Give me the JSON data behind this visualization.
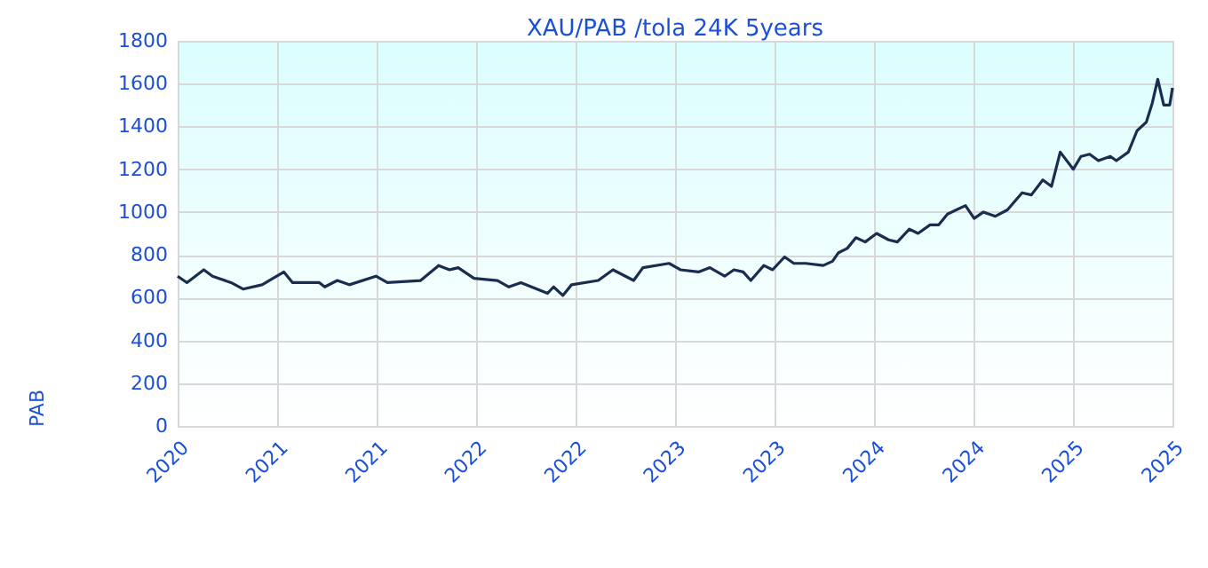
{
  "chart_data": {
    "type": "line",
    "title": "XAU/PAB /tola 24K 5years",
    "ylabel": "PAB",
    "x": [
      "2020-10-28",
      "2020-11-14",
      "2020-12-15",
      "2020-12-31",
      "2021-02-03",
      "2021-02-25",
      "2021-04-01",
      "2021-05-11",
      "2021-05-27",
      "2021-07-15",
      "2021-07-25",
      "2021-08-17",
      "2021-09-08",
      "2021-10-27",
      "2021-11-17",
      "2022-01-17",
      "2022-02-19",
      "2022-03-11",
      "2022-03-27",
      "2022-04-25",
      "2022-06-07",
      "2022-06-28",
      "2022-07-20",
      "2022-09-07",
      "2022-09-18",
      "2022-10-05",
      "2022-10-21",
      "2022-12-09",
      "2023-01-05",
      "2023-02-12",
      "2023-03-01",
      "2023-04-18",
      "2023-05-09",
      "2023-06-11",
      "2023-07-02",
      "2023-07-29",
      "2023-08-15",
      "2023-09-01",
      "2023-09-15",
      "2023-10-09",
      "2023-10-25",
      "2023-11-16",
      "2023-12-03",
      "2023-12-25",
      "2024-01-26",
      "2024-02-12",
      "2024-02-23",
      "2024-03-10",
      "2024-03-26",
      "2024-04-12",
      "2024-05-03",
      "2024-05-25",
      "2024-06-10",
      "2024-07-02",
      "2024-07-18",
      "2024-08-09",
      "2024-08-25",
      "2024-09-10",
      "2024-10-13",
      "2024-10-29",
      "2024-11-15",
      "2024-12-07",
      "2024-12-29",
      "2025-01-25",
      "2025-02-11",
      "2025-03-04",
      "2025-03-20",
      "2025-04-05",
      "2025-04-29",
      "2025-05-13",
      "2025-05-29",
      "2025-06-14",
      "2025-07-06",
      "2025-07-17",
      "2025-08-08",
      "2025-08-24",
      "2025-09-10",
      "2025-09-21",
      "2025-10-01",
      "2025-10-12",
      "2025-10-23",
      "2025-10-28"
    ],
    "series": [
      {
        "color": "#1b2d4f",
        "values": [
          700,
          670,
          730,
          700,
          670,
          640,
          660,
          720,
          670,
          670,
          650,
          680,
          660,
          700,
          670,
          680,
          750,
          730,
          740,
          690,
          680,
          650,
          670,
          620,
          650,
          610,
          660,
          680,
          730,
          680,
          740,
          760,
          730,
          720,
          740,
          700,
          730,
          720,
          680,
          750,
          730,
          790,
          760,
          760,
          750,
          770,
          810,
          830,
          880,
          860,
          900,
          870,
          860,
          920,
          900,
          940,
          940,
          990,
          1030,
          970,
          1000,
          980,
          1010,
          1090,
          1080,
          1150,
          1120,
          1280,
          1200,
          1260,
          1270,
          1240,
          1260,
          1240,
          1280,
          1380,
          1420,
          1510,
          1620,
          1500,
          1500,
          1580
        ]
      }
    ],
    "xlim": [
      "2020-10-28",
      "2025-10-28"
    ],
    "xticks": [
      {
        "value": "2020-10-28",
        "label": "2020"
      },
      {
        "value": "2021-04-28",
        "label": "2021"
      },
      {
        "value": "2021-10-28",
        "label": "2021"
      },
      {
        "value": "2022-04-28",
        "label": "2022"
      },
      {
        "value": "2022-10-28",
        "label": "2022"
      },
      {
        "value": "2023-04-28",
        "label": "2023"
      },
      {
        "value": "2023-10-28",
        "label": "2023"
      },
      {
        "value": "2024-04-28",
        "label": "2024"
      },
      {
        "value": "2024-10-28",
        "label": "2024"
      },
      {
        "value": "2025-04-28",
        "label": "2025"
      },
      {
        "value": "2025-10-28",
        "label": "2025"
      }
    ],
    "ylim": [
      0,
      1800
    ],
    "yticks": [
      0,
      200,
      400,
      600,
      800,
      {
        "value": 1000,
        "label": "1000"
      },
      {
        "value": 1200,
        "label": "1200"
      },
      {
        "value": 1400,
        "label": "1400"
      },
      {
        "value": 1600,
        "label": "1600"
      },
      {
        "value": 1800,
        "label": "1800"
      }
    ],
    "grid": true,
    "legend": false
  }
}
